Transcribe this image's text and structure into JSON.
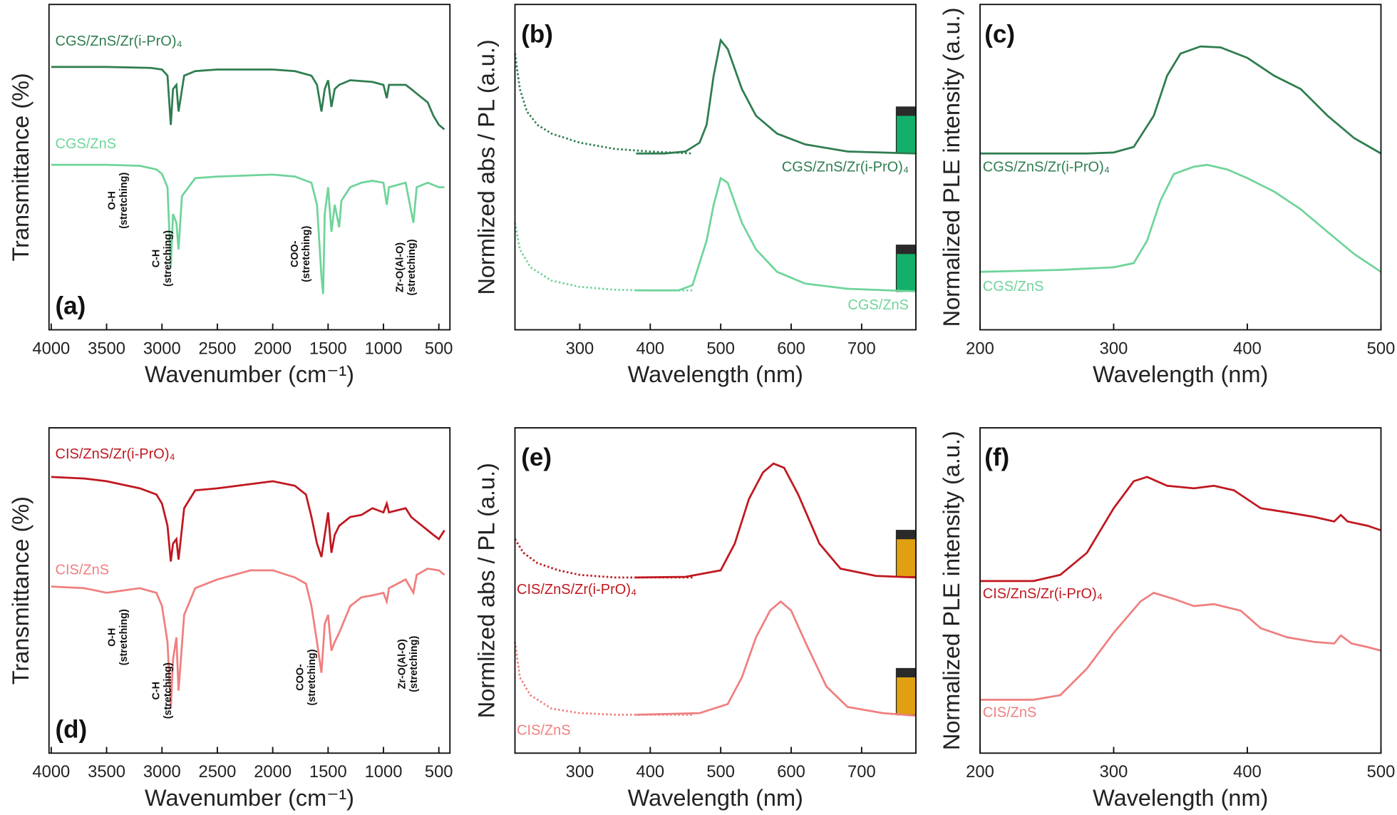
{
  "chart_data": [
    {
      "type": "line",
      "panel": "(a)",
      "xlabel": "Wavenumber (cm⁻¹)",
      "ylabel": "Transmittance (%)",
      "xlim": [
        4020,
        400
      ],
      "xticks": [
        4000,
        3500,
        3000,
        2500,
        2000,
        1500,
        1000,
        500
      ],
      "ylim": [
        0,
        100
      ],
      "annotations": [
        {
          "lines": [
            "O-H",
            "(stretching)"
          ],
          "x": 3400
        },
        {
          "lines": [
            "C-H",
            "(stretching)"
          ],
          "x": 3000
        },
        {
          "lines": [
            "COO-",
            "(stretching)"
          ],
          "x": 1750
        },
        {
          "lines": [
            "Zr-O(Al-O)",
            "(stretching)"
          ],
          "x": 800
        }
      ],
      "series": [
        {
          "name": "CGS/ZnS/Zr(i-PrO)₄",
          "color": "#2e7d4f",
          "line_style": "solid",
          "x": [
            4000,
            3500,
            3100,
            3000,
            2950,
            2920,
            2900,
            2870,
            2850,
            2800,
            2700,
            2500,
            2000,
            1800,
            1650,
            1600,
            1560,
            1530,
            1500,
            1470,
            1440,
            1400,
            1300,
            1100,
            1000,
            970,
            950,
            800,
            750,
            700,
            600,
            550,
            500,
            450
          ],
          "values": [
            80.8,
            80.8,
            80.5,
            80,
            78.1,
            63,
            74,
            75.3,
            67.1,
            78.1,
            79.5,
            80,
            80,
            79.5,
            78.1,
            75.3,
            67.1,
            74,
            76.7,
            68.5,
            74,
            75.3,
            76.7,
            76.2,
            75.3,
            71.2,
            75.3,
            75.3,
            74,
            72.6,
            69.9,
            65.8,
            63,
            61.6
          ]
        },
        {
          "name": "CGS/ZnS",
          "color": "#6fd49a",
          "line_style": "solid",
          "x": [
            4000,
            3500,
            3200,
            3050,
            3000,
            2950,
            2920,
            2900,
            2870,
            2850,
            2820,
            2700,
            2500,
            2000,
            1800,
            1650,
            1600,
            1560,
            1545,
            1530,
            1500,
            1470,
            1440,
            1400,
            1380,
            1300,
            1200,
            1100,
            1000,
            970,
            950,
            800,
            730,
            700,
            600,
            500,
            450
          ],
          "values": [
            50.7,
            50.7,
            50.4,
            49.3,
            47.9,
            43.8,
            19.2,
            35.6,
            32.9,
            24.7,
            41.1,
            46.6,
            47.1,
            47.7,
            47.1,
            45.2,
            38.4,
            16.4,
            11,
            35.6,
            43.8,
            30.1,
            38.4,
            31.5,
            39.7,
            43.8,
            45.2,
            45.8,
            45.2,
            38.4,
            43.8,
            45.2,
            32.9,
            43.8,
            45.2,
            43.8,
            43.8
          ]
        }
      ]
    },
    {
      "type": "line",
      "panel": "(b)",
      "xlabel": "Wavelength (nm)",
      "ylabel": "Normlized abs / PL (a.u.)",
      "xlim": [
        208,
        777
      ],
      "xticks": [
        300,
        400,
        500,
        600,
        700
      ],
      "ylim": [
        0,
        100
      ],
      "series": [
        {
          "color": "#2e7d4f",
          "line_style": "dotted",
          "x": [
            208,
            215,
            225,
            240,
            260,
            300,
            350,
            400,
            460
          ],
          "values": [
            84.9,
            74,
            67.1,
            63,
            60.3,
            57.5,
            55.6,
            54.8,
            54.2
          ]
        },
        {
          "name": "CGS/ZnS/Zr(i-PrO)₄",
          "color": "#2e7d4f",
          "line_style": "solid",
          "x": [
            380,
            420,
            450,
            470,
            480,
            490,
            500,
            510,
            530,
            550,
            580,
            620,
            680,
            777
          ],
          "values": [
            54.2,
            54.2,
            54.8,
            57.5,
            63,
            78.1,
            89,
            86.3,
            74,
            65.8,
            60.3,
            57,
            54.8,
            54.2
          ]
        },
        {
          "color": "#6fd49a",
          "line_style": "dotted",
          "x": [
            208,
            215,
            230,
            260,
            300,
            350,
            400,
            460
          ],
          "values": [
            32.9,
            24.7,
            19.2,
            15.1,
            13.2,
            12.3,
            12.1,
            12.1
          ]
        },
        {
          "name": "CGS/ZnS",
          "color": "#6fd49a",
          "line_style": "solid",
          "x": [
            380,
            440,
            460,
            480,
            490,
            500,
            510,
            530,
            550,
            580,
            620,
            680,
            777
          ],
          "values": [
            12.1,
            12.1,
            13.7,
            27.4,
            38.4,
            46.6,
            45.2,
            32.9,
            24.7,
            17.8,
            14.2,
            12.6,
            11.8
          ]
        }
      ]
    },
    {
      "type": "line",
      "panel": "(c)",
      "xlabel": "Wavelength (nm)",
      "ylabel": "Normalized PLE intensity (a.u.)",
      "xlim": [
        200,
        500
      ],
      "xticks": [
        200,
        300,
        400,
        500
      ],
      "ylim": [
        0,
        100
      ],
      "series": [
        {
          "name": "CGS/ZnS/Zr(i-PrO)₄",
          "color": "#2e7d4f",
          "line_style": "solid",
          "x": [
            200,
            240,
            280,
            300,
            315,
            330,
            340,
            350,
            365,
            380,
            400,
            420,
            440,
            460,
            480,
            500
          ],
          "values": [
            54.2,
            54.2,
            54.2,
            54.5,
            56.2,
            65.8,
            78.1,
            84.9,
            87.1,
            86.8,
            83.6,
            78.1,
            74,
            65.8,
            58.9,
            54.2
          ]
        },
        {
          "name": "CGS/ZnS",
          "color": "#6fd49a",
          "line_style": "solid",
          "x": [
            200,
            260,
            300,
            315,
            325,
            335,
            345,
            360,
            370,
            385,
            400,
            420,
            440,
            460,
            480,
            500
          ],
          "values": [
            17.8,
            18.4,
            19.2,
            20.5,
            27.4,
            39.7,
            47.9,
            50.1,
            50.7,
            49.3,
            46.6,
            42.5,
            37,
            30.1,
            23.3,
            17.8
          ]
        }
      ]
    },
    {
      "type": "line",
      "panel": "(d)",
      "xlabel": "Wavenumber (cm⁻¹)",
      "ylabel": "Transmittance (%)",
      "xlim": [
        4020,
        400
      ],
      "xticks": [
        4000,
        3500,
        3000,
        2500,
        2000,
        1500,
        1000,
        500
      ],
      "ylim": [
        0,
        100
      ],
      "annotations": [
        {
          "lines": [
            "O-H",
            "(stretching)"
          ],
          "x": 3400
        },
        {
          "lines": [
            "C-H",
            "(stretching)"
          ],
          "x": 3000
        },
        {
          "lines": [
            "COO-",
            "(stretching)"
          ],
          "x": 1700
        },
        {
          "lines": [
            "Zr-O(Al-O)",
            "(stretching)"
          ],
          "x": 780
        }
      ],
      "series": [
        {
          "name": "CIS/ZnS/Zr(i-PrO)₄",
          "color": "#c0171f",
          "line_style": "solid",
          "x": [
            4000,
            3700,
            3500,
            3200,
            3050,
            3000,
            2950,
            2920,
            2900,
            2870,
            2850,
            2800,
            2700,
            2500,
            2000,
            1800,
            1700,
            1650,
            1600,
            1560,
            1530,
            1500,
            1470,
            1440,
            1400,
            1300,
            1200,
            1100,
            1000,
            970,
            950,
            800,
            750,
            700,
            600,
            550,
            500,
            450
          ],
          "values": [
            84.9,
            84.4,
            83.6,
            81.4,
            79.5,
            76.7,
            69.9,
            58.9,
            64.4,
            65.8,
            59.5,
            75.3,
            80.8,
            81.4,
            83.6,
            82.2,
            79.5,
            72.6,
            64.4,
            60.3,
            67.1,
            74,
            61.6,
            67.1,
            69.9,
            72.6,
            73.2,
            75.3,
            74,
            76.7,
            74,
            75.3,
            72.6,
            71.2,
            68.5,
            67.1,
            65.8,
            68.5
          ]
        },
        {
          "name": "CIS/ZnS",
          "color": "#f07f7f",
          "line_style": "solid",
          "x": [
            4000,
            3700,
            3500,
            3200,
            3050,
            3000,
            2950,
            2920,
            2900,
            2870,
            2850,
            2800,
            2700,
            2500,
            2200,
            2000,
            1800,
            1700,
            1650,
            1600,
            1560,
            1530,
            1500,
            1470,
            1440,
            1400,
            1300,
            1200,
            1100,
            1000,
            970,
            950,
            800,
            730,
            700,
            600,
            500,
            450
          ],
          "values": [
            51.2,
            50.7,
            49.3,
            50.7,
            49.3,
            45.2,
            34.2,
            13.7,
            28.8,
            35.6,
            19.2,
            42.5,
            50.7,
            53.4,
            56.2,
            56.2,
            54,
            52.1,
            45.2,
            34.2,
            24.7,
            39.7,
            42.5,
            31.5,
            34.2,
            37,
            45.2,
            47.9,
            48.5,
            49.3,
            46.6,
            50.7,
            53.4,
            49.3,
            54.8,
            56.7,
            56.2,
            54.8
          ]
        }
      ]
    },
    {
      "type": "line",
      "panel": "(e)",
      "xlabel": "Wavelength (nm)",
      "ylabel": "Normlized abs / PL (a.u.)",
      "xlim": [
        208,
        777
      ],
      "xticks": [
        300,
        400,
        500,
        600,
        700
      ],
      "ylim": [
        0,
        100
      ],
      "series": [
        {
          "color": "#c0171f",
          "line_style": "dotted",
          "x": [
            208,
            220,
            240,
            270,
            300,
            350,
            400,
            460
          ],
          "values": [
            65.8,
            61.6,
            58.4,
            56.2,
            54.8,
            54,
            54,
            54
          ]
        },
        {
          "name": "CIS/ZnS/Zr(i-PrO)₄",
          "color": "#c0171f",
          "line_style": "solid",
          "x": [
            380,
            450,
            500,
            520,
            540,
            560,
            575,
            590,
            610,
            640,
            670,
            720,
            777
          ],
          "values": [
            54,
            54.2,
            56.2,
            64.4,
            78.1,
            86.3,
            89,
            87.7,
            79.5,
            64.4,
            56.7,
            54.5,
            54
          ]
        },
        {
          "color": "#f07f7f",
          "line_style": "dotted",
          "x": [
            208,
            215,
            230,
            260,
            300,
            350,
            400,
            460
          ],
          "values": [
            34.2,
            23.3,
            17.8,
            13.7,
            12.3,
            11.8,
            11.8,
            11.8
          ]
        },
        {
          "name": "CIS/ZnS",
          "color": "#f07f7f",
          "line_style": "solid",
          "x": [
            380,
            470,
            510,
            530,
            550,
            570,
            585,
            600,
            620,
            650,
            680,
            730,
            777
          ],
          "values": [
            11.8,
            12.3,
            15.1,
            23.3,
            35.6,
            43.8,
            46.6,
            43.8,
            34.2,
            20.5,
            14.2,
            12.3,
            11.5
          ]
        }
      ]
    },
    {
      "type": "line",
      "panel": "(f)",
      "xlabel": "Wavelength (nm)",
      "ylabel": "Normalized PLE intensity (a.u.)",
      "xlim": [
        200,
        500
      ],
      "xticks": [
        200,
        300,
        400,
        500
      ],
      "ylim": [
        0,
        100
      ],
      "series": [
        {
          "name": "CIS/ZnS/Zr(i-PrO)₄",
          "color": "#c0171f",
          "line_style": "solid",
          "x": [
            200,
            240,
            260,
            280,
            300,
            315,
            325,
            340,
            360,
            375,
            390,
            410,
            430,
            450,
            465,
            470,
            475,
            490,
            500
          ],
          "values": [
            52.9,
            52.9,
            54.8,
            61.6,
            75.3,
            83.6,
            84.9,
            82.2,
            81.4,
            82.2,
            80.8,
            75.3,
            74,
            72.6,
            71.2,
            73.2,
            71.2,
            69.9,
            68.5
          ]
        },
        {
          "name": "CIS/ZnS",
          "color": "#f07f7f",
          "line_style": "solid",
          "x": [
            200,
            240,
            260,
            280,
            300,
            320,
            330,
            345,
            360,
            375,
            395,
            410,
            430,
            450,
            465,
            470,
            478,
            490,
            500
          ],
          "values": [
            16.4,
            16.4,
            17.8,
            26,
            37,
            46.6,
            49.3,
            47.4,
            45.2,
            45.8,
            43.8,
            38.4,
            35.6,
            34.2,
            33.7,
            36.2,
            33.7,
            32.6,
            31.5
          ]
        }
      ]
    }
  ]
}
